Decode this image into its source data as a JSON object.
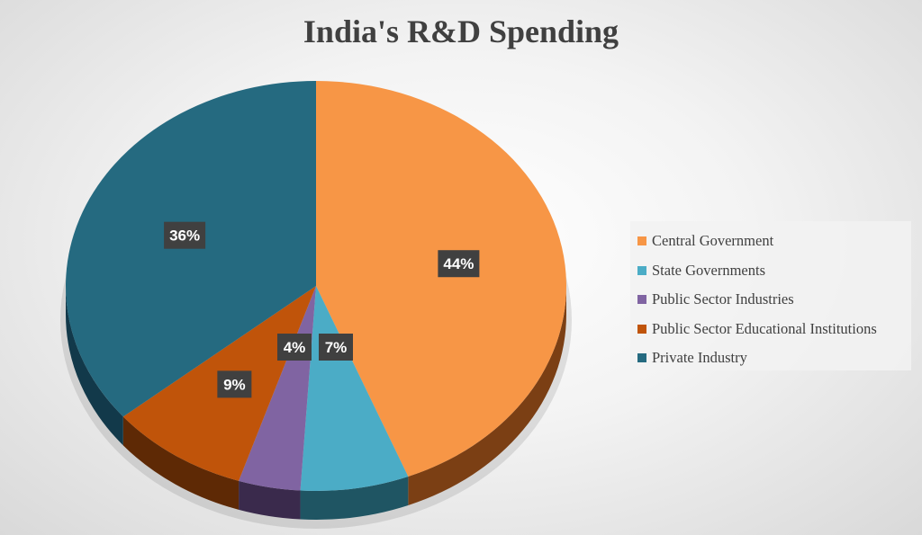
{
  "chart_data": {
    "type": "pie",
    "title": "India's R&D Spending",
    "slices": [
      {
        "label": "Central Government",
        "value": 44,
        "display": "44%",
        "color": "#F79646",
        "side": "#7B3F14"
      },
      {
        "label": "State Governments",
        "value": 7,
        "display": "7%",
        "color": "#4BACC6",
        "side": "#1F5563"
      },
      {
        "label": "Public Sector Industries",
        "value": 4,
        "display": "4%",
        "color": "#8064A2",
        "side": "#3A2A4C"
      },
      {
        "label": "Public Sector Educational Institutions",
        "value": 9,
        "display": "9%",
        "color": "#C0540A",
        "side": "#5E2905"
      },
      {
        "label": "Private Industry",
        "value": 36,
        "display": "36%",
        "color": "#256A80",
        "side": "#12394A"
      }
    ],
    "legend_position": "right"
  }
}
